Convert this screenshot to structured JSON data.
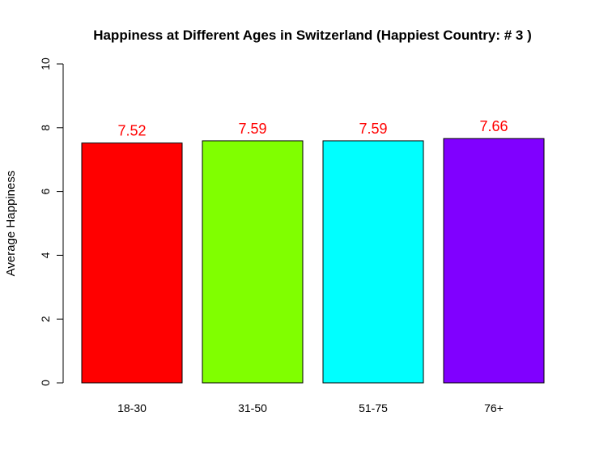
{
  "chart_data": {
    "type": "bar",
    "title": "Happiness at Different Ages in Switzerland (Happiest Country: # 3 )",
    "xlabel": "",
    "ylabel": "Average Happiness",
    "categories": [
      "18-30",
      "31-50",
      "51-75",
      "76+"
    ],
    "values": [
      7.52,
      7.59,
      7.59,
      7.66
    ],
    "data_labels": [
      "7.52",
      "7.59",
      "7.59",
      "7.66"
    ],
    "bar_colors": [
      "#FF0000",
      "#80FF00",
      "#00FFFF",
      "#8000FF"
    ],
    "data_label_color": "#FF0000",
    "ylim": [
      0,
      10
    ],
    "yticks": [
      0,
      2,
      4,
      6,
      8,
      10
    ],
    "ytick_labels": [
      "0",
      "2",
      "4",
      "6",
      "8",
      "10"
    ],
    "grid": false,
    "legend": "none"
  }
}
